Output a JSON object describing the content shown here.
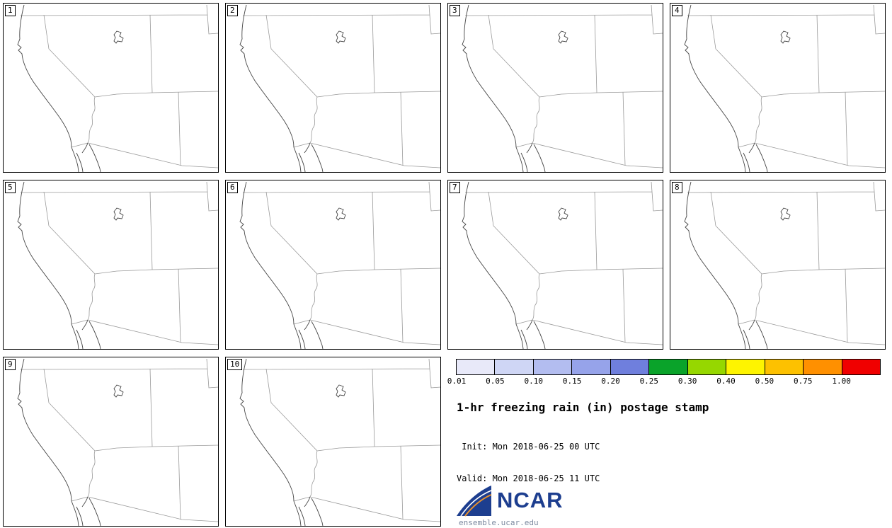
{
  "panels": [
    {
      "label": "1"
    },
    {
      "label": "2"
    },
    {
      "label": "3"
    },
    {
      "label": "4"
    },
    {
      "label": "5"
    },
    {
      "label": "6"
    },
    {
      "label": "7"
    },
    {
      "label": "8"
    },
    {
      "label": "9"
    },
    {
      "label": "10"
    }
  ],
  "legend": {
    "colorbar": {
      "tick_labels": [
        "0.01",
        "0.05",
        "0.10",
        "0.15",
        "0.20",
        "0.25",
        "0.30",
        "0.40",
        "0.50",
        "0.75",
        "1.00"
      ],
      "segment_colors": [
        "#e8e9f9",
        "#cfd6f5",
        "#b3bdf0",
        "#96a3ea",
        "#6f7fdd",
        "#0aa32a",
        "#96d700",
        "#fef400",
        "#fdc100",
        "#ff9000",
        "#f00000"
      ]
    },
    "title": "1-hr freezing rain (in) postage stamp",
    "init_line": " Init: Mon 2018-06-25 00 UTC",
    "valid_line": "Valid: Mon 2018-06-25 11 UTC",
    "logo_text": "NCAR",
    "logo_url_text": "ensemble.ucar.edu",
    "brand_color": "#1d3e8f"
  }
}
